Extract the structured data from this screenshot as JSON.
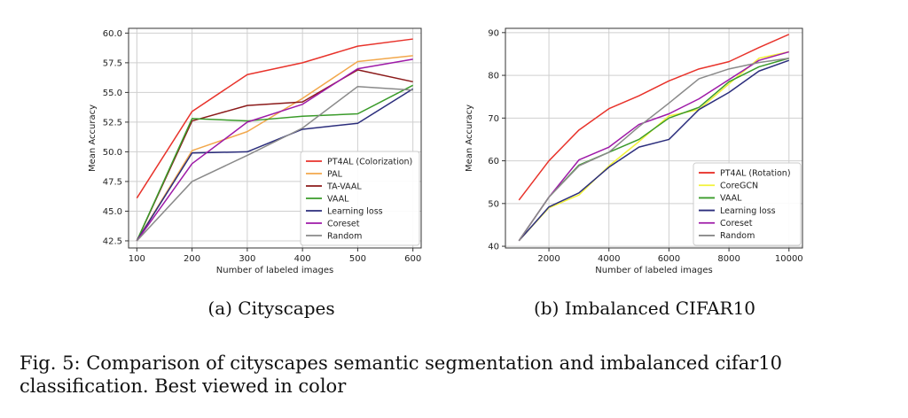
{
  "figure": {
    "caption_line1": "Fig. 5: Comparison of cityscapes semantic segmentation and imbalanced cifar10",
    "caption_line2": "classification. Best viewed in color"
  },
  "chart_data": [
    {
      "type": "line",
      "subcaption": "(a) Cityscapes",
      "title": "",
      "xlabel": "Number of labeled images",
      "ylabel": "Mean Accuracy",
      "x": [
        100,
        200,
        300,
        400,
        500,
        600
      ],
      "xlim": [
        85,
        615
      ],
      "ylim": [
        41.9,
        60.4
      ],
      "xticks": [
        100,
        200,
        300,
        400,
        500,
        600
      ],
      "xtick_labels": [
        "100",
        "200",
        "300",
        "400",
        "500",
        "600"
      ],
      "yticks": [
        42.5,
        45.0,
        47.5,
        50.0,
        52.5,
        55.0,
        57.5,
        60.0
      ],
      "ytick_labels": [
        "42.5",
        "45.0",
        "47.5",
        "50.0",
        "52.5",
        "55.0",
        "57.5",
        "60.0"
      ],
      "grid": true,
      "legend_position": "lower-right",
      "series": [
        {
          "name": "PT4AL (Colorization)",
          "color": "#e8332b",
          "values": [
            46.1,
            53.4,
            56.5,
            57.5,
            58.9,
            59.5
          ]
        },
        {
          "name": "PAL",
          "color": "#f2a84c",
          "values": [
            42.5,
            50.1,
            51.7,
            54.5,
            57.6,
            58.1
          ]
        },
        {
          "name": "TA-VAAL",
          "color": "#8b1a1a",
          "values": [
            42.5,
            52.6,
            53.9,
            54.2,
            56.9,
            55.9
          ]
        },
        {
          "name": "VAAL",
          "color": "#3a9b2a",
          "values": [
            42.5,
            52.8,
            52.6,
            53.0,
            53.2,
            55.6
          ]
        },
        {
          "name": "Learning loss",
          "color": "#2b2d7c",
          "values": [
            42.5,
            49.9,
            50.0,
            51.9,
            52.4,
            55.3
          ]
        },
        {
          "name": "Coreset",
          "color": "#9e1aa8",
          "values": [
            42.5,
            49.0,
            52.5,
            54.0,
            57.0,
            57.8
          ]
        },
        {
          "name": "Random",
          "color": "#8a8a8a",
          "values": [
            42.5,
            47.5,
            49.7,
            52.0,
            55.5,
            55.2
          ]
        }
      ]
    },
    {
      "type": "line",
      "subcaption": "(b) Imbalanced CIFAR10",
      "title": "",
      "xlabel": "Number of labeled images",
      "ylabel": "Mean Accuracy",
      "x": [
        1000,
        2000,
        3000,
        4000,
        5000,
        6000,
        7000,
        8000,
        9000,
        10000
      ],
      "xlim": [
        550,
        10450
      ],
      "ylim": [
        39.6,
        91.0
      ],
      "xticks": [
        2000,
        4000,
        6000,
        8000,
        10000
      ],
      "xtick_labels": [
        "2000",
        "4000",
        "6000",
        "8000",
        "10000"
      ],
      "yticks": [
        40,
        50,
        60,
        70,
        80,
        90
      ],
      "ytick_labels": [
        "40",
        "50",
        "60",
        "70",
        "80",
        "90"
      ],
      "grid": true,
      "legend_position": "lower-right",
      "series": [
        {
          "name": "PT4AL (Rotation)",
          "color": "#e8332b",
          "values": [
            50.8,
            60.0,
            67.2,
            72.2,
            75.2,
            78.7,
            81.5,
            83.2,
            86.5,
            89.6
          ]
        },
        {
          "name": "CoreGCN",
          "color": "#f2f23a",
          "values": [
            41.3,
            49.0,
            52.0,
            58.8,
            64.5,
            70.5,
            72.0,
            78.0,
            84.0,
            85.5
          ]
        },
        {
          "name": "VAAL",
          "color": "#3a9b2a",
          "values": [
            41.3,
            51.5,
            59.0,
            62.0,
            65.0,
            70.0,
            72.5,
            78.5,
            82.0,
            84.0
          ]
        },
        {
          "name": "Learning loss",
          "color": "#2b2d7c",
          "values": [
            41.3,
            49.2,
            52.5,
            58.5,
            63.2,
            65.0,
            72.0,
            76.0,
            81.0,
            83.5
          ]
        },
        {
          "name": "Coreset",
          "color": "#9e1aa8",
          "values": [
            41.3,
            51.5,
            60.2,
            63.2,
            68.5,
            71.0,
            74.5,
            79.0,
            83.5,
            85.5
          ]
        },
        {
          "name": "Random",
          "color": "#8a8a8a",
          "values": [
            41.3,
            51.5,
            58.8,
            62.0,
            68.0,
            73.5,
            79.2,
            81.5,
            83.0,
            84.0
          ]
        }
      ]
    }
  ]
}
